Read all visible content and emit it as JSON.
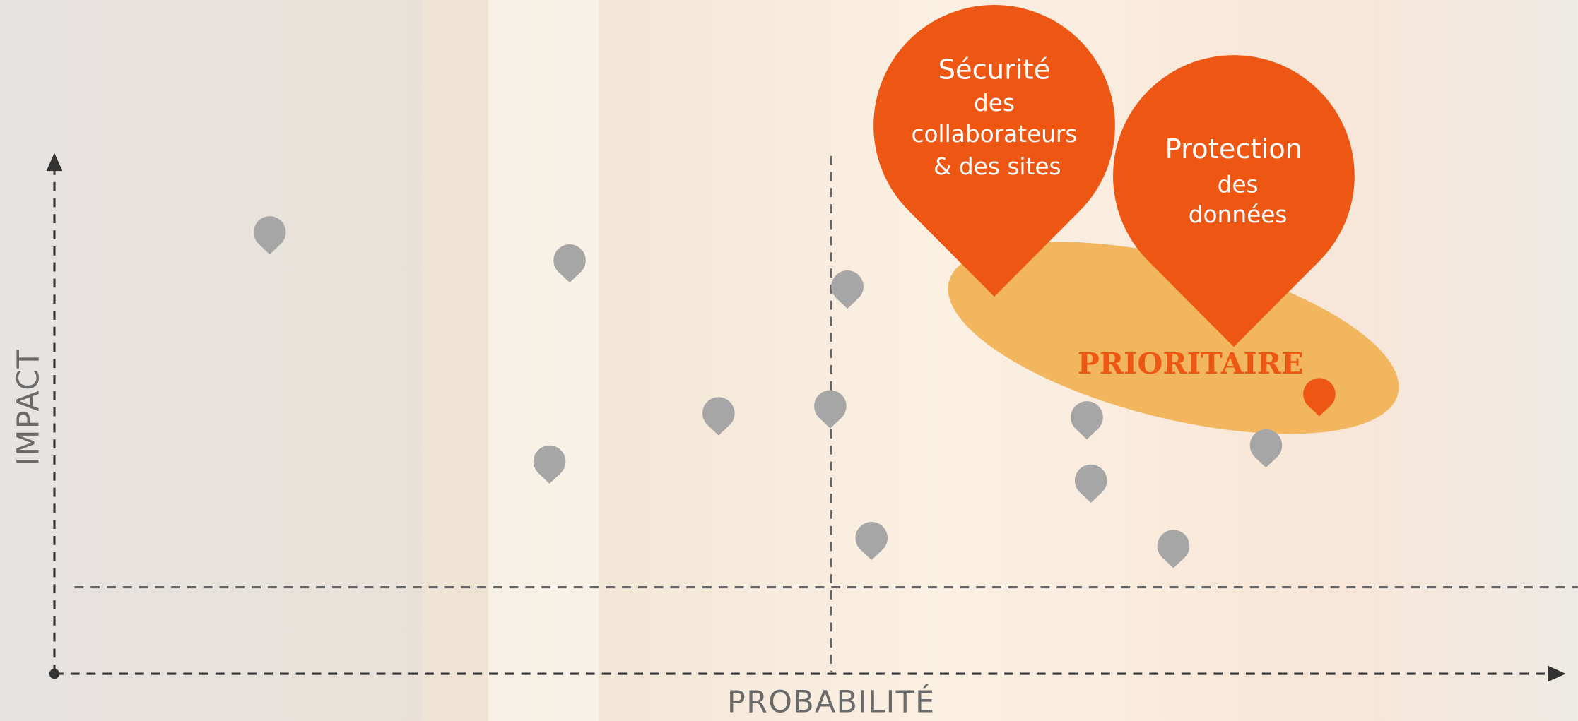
{
  "axes": {
    "y": "IMPACT",
    "x": "PROBABILITÉ"
  },
  "priority_zone": {
    "label": "PRIORITAIRE"
  },
  "callouts": [
    {
      "lines": [
        "Sécurité",
        "des",
        "collaborateurs",
        "& des sites"
      ]
    },
    {
      "lines": [
        "Protection",
        "des",
        "données"
      ]
    }
  ]
}
